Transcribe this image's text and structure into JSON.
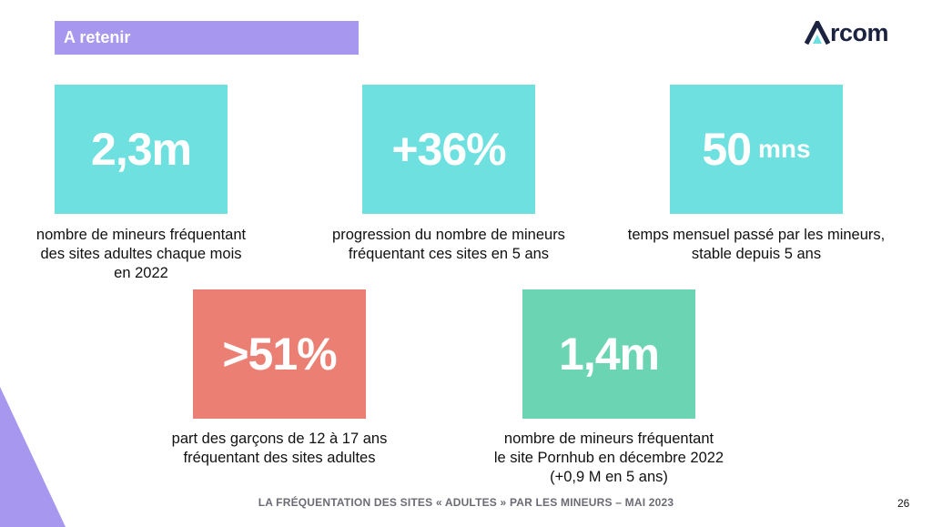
{
  "header": {
    "title": "A retenir",
    "logo_text": "rcom"
  },
  "stats": [
    {
      "value": "2,3m",
      "unit": "",
      "color": "#6ee0e0",
      "caption": [
        "nombre de mineurs fréquentant",
        "des sites adultes chaque mois",
        "en 2022"
      ]
    },
    {
      "value": "+36%",
      "unit": "",
      "color": "#6ee0e0",
      "caption": [
        "progression du nombre de mineurs",
        "fréquentant ces sites  en 5 ans"
      ]
    },
    {
      "value": "50",
      "unit": "mns",
      "color": "#6ee0e0",
      "caption": [
        "temps mensuel passé par les mineurs,",
        "stable depuis 5 ans"
      ]
    },
    {
      "value": ">51%",
      "unit": "",
      "color": "#ec7f74",
      "caption": [
        "part des garçons de 12 à 17 ans",
        "fréquentant des sites adultes"
      ]
    },
    {
      "value": "1,4m",
      "unit": "",
      "color": "#6bd5b3",
      "caption": [
        "nombre de mineurs fréquentant",
        "le site Pornhub en décembre 2022",
        "(+0,9 M en 5 ans)"
      ]
    }
  ],
  "footer": {
    "text": "LA FRÉQUENTATION DES SITES « ADULTES » PAR LES MINEURS – MAI 2023",
    "page_number": "26"
  },
  "colors": {
    "accent_purple": "#a897ef",
    "logo_navy": "#1c2340"
  }
}
